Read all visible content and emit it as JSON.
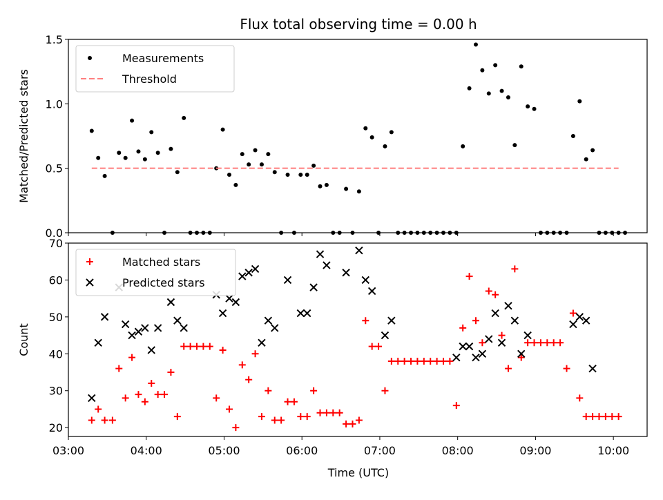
{
  "title": "Flux total observing time = 0.00 h",
  "xlabel": "Time (UTC)",
  "x_ticks": [
    "03:00",
    "04:00",
    "05:00",
    "06:00",
    "07:00",
    "08:00",
    "09:00",
    "10:00"
  ],
  "colors": {
    "measurements": "#000000",
    "threshold": "#ff7f7f",
    "matched": "#ff0000",
    "predicted": "#000000"
  },
  "chart_data": [
    {
      "type": "scatter",
      "ylabel": "Matched/Predicted stars",
      "xlim": [
        "03:00",
        "10:26"
      ],
      "ylim": [
        0,
        1.5
      ],
      "y_ticks": [
        "0.0",
        "0.5",
        "1.0",
        "1.5"
      ],
      "grid": false,
      "legend_position": "top-left",
      "series": [
        {
          "name": "Measurements",
          "marker": "dot",
          "points": [
            [
              "03:18",
              0.79
            ],
            [
              "03:23",
              0.58
            ],
            [
              "03:28",
              0.44
            ],
            [
              "03:34",
              0.0
            ],
            [
              "03:39",
              0.62
            ],
            [
              "03:44",
              0.58
            ],
            [
              "03:49",
              0.87
            ],
            [
              "03:54",
              0.63
            ],
            [
              "03:59",
              0.57
            ],
            [
              "04:04",
              0.78
            ],
            [
              "04:09",
              0.62
            ],
            [
              "04:14",
              0.0
            ],
            [
              "04:19",
              0.65
            ],
            [
              "04:24",
              0.47
            ],
            [
              "04:29",
              0.89
            ],
            [
              "04:34",
              0.0
            ],
            [
              "04:39",
              0.0
            ],
            [
              "04:44",
              0.0
            ],
            [
              "04:49",
              0.0
            ],
            [
              "04:54",
              0.5
            ],
            [
              "04:59",
              0.8
            ],
            [
              "05:04",
              0.45
            ],
            [
              "05:09",
              0.37
            ],
            [
              "05:14",
              0.61
            ],
            [
              "05:19",
              0.53
            ],
            [
              "05:24",
              0.64
            ],
            [
              "05:29",
              0.53
            ],
            [
              "05:34",
              0.61
            ],
            [
              "05:39",
              0.47
            ],
            [
              "05:44",
              0.0
            ],
            [
              "05:49",
              0.45
            ],
            [
              "05:54",
              0.0
            ],
            [
              "05:59",
              0.45
            ],
            [
              "06:04",
              0.45
            ],
            [
              "06:09",
              0.52
            ],
            [
              "06:14",
              0.36
            ],
            [
              "06:19",
              0.37
            ],
            [
              "06:24",
              0.0
            ],
            [
              "06:29",
              0.0
            ],
            [
              "06:34",
              0.34
            ],
            [
              "06:39",
              0.0
            ],
            [
              "06:44",
              0.32
            ],
            [
              "06:49",
              0.81
            ],
            [
              "06:54",
              0.74
            ],
            [
              "06:59",
              0.0
            ],
            [
              "07:04",
              0.67
            ],
            [
              "07:09",
              0.78
            ],
            [
              "07:14",
              0.0
            ],
            [
              "07:19",
              0.0
            ],
            [
              "07:24",
              0.0
            ],
            [
              "07:29",
              0.0
            ],
            [
              "07:34",
              0.0
            ],
            [
              "07:39",
              0.0
            ],
            [
              "07:44",
              0.0
            ],
            [
              "07:49",
              0.0
            ],
            [
              "07:54",
              0.0
            ],
            [
              "07:59",
              0.0
            ],
            [
              "08:04",
              0.67
            ],
            [
              "08:09",
              1.12
            ],
            [
              "08:14",
              1.46
            ],
            [
              "08:19",
              1.26
            ],
            [
              "08:24",
              1.08
            ],
            [
              "08:29",
              1.3
            ],
            [
              "08:34",
              1.1
            ],
            [
              "08:39",
              1.05
            ],
            [
              "08:44",
              0.68
            ],
            [
              "08:49",
              1.29
            ],
            [
              "08:54",
              0.98
            ],
            [
              "08:59",
              0.96
            ],
            [
              "09:04",
              0.0
            ],
            [
              "09:09",
              0.0
            ],
            [
              "09:14",
              0.0
            ],
            [
              "09:19",
              0.0
            ],
            [
              "09:24",
              0.0
            ],
            [
              "09:29",
              0.75
            ],
            [
              "09:34",
              1.02
            ],
            [
              "09:39",
              0.57
            ],
            [
              "09:44",
              0.64
            ],
            [
              "09:49",
              0.0
            ],
            [
              "09:54",
              0.0
            ],
            [
              "09:59",
              0.0
            ],
            [
              "10:04",
              0.0
            ],
            [
              "10:09",
              0.0
            ]
          ]
        },
        {
          "name": "Threshold",
          "marker": "dashed-line",
          "points": [
            [
              "03:18",
              0.5
            ],
            [
              "10:04",
              0.5
            ]
          ]
        }
      ]
    },
    {
      "type": "scatter",
      "ylabel": "Count",
      "xlim": [
        "03:00",
        "10:26"
      ],
      "ylim": [
        17.6,
        70
      ],
      "y_ticks": [
        "20",
        "30",
        "40",
        "50",
        "60",
        "70"
      ],
      "grid": false,
      "legend_position": "top-left",
      "series": [
        {
          "name": "Matched stars",
          "marker": "plus",
          "points": [
            [
              "03:18",
              22
            ],
            [
              "03:23",
              25
            ],
            [
              "03:28",
              22
            ],
            [
              "03:34",
              22
            ],
            [
              "03:39",
              36
            ],
            [
              "03:44",
              28
            ],
            [
              "03:49",
              39
            ],
            [
              "03:54",
              29
            ],
            [
              "03:59",
              27
            ],
            [
              "04:04",
              32
            ],
            [
              "04:09",
              29
            ],
            [
              "04:14",
              29
            ],
            [
              "04:19",
              35
            ],
            [
              "04:24",
              23
            ],
            [
              "04:29",
              42
            ],
            [
              "04:34",
              42
            ],
            [
              "04:39",
              42
            ],
            [
              "04:44",
              42
            ],
            [
              "04:49",
              42
            ],
            [
              "04:54",
              28
            ],
            [
              "04:59",
              41
            ],
            [
              "05:04",
              25
            ],
            [
              "05:09",
              20
            ],
            [
              "05:14",
              37
            ],
            [
              "05:19",
              33
            ],
            [
              "05:24",
              40
            ],
            [
              "05:29",
              23
            ],
            [
              "05:34",
              30
            ],
            [
              "05:39",
              22
            ],
            [
              "05:44",
              22
            ],
            [
              "05:49",
              27
            ],
            [
              "05:54",
              27
            ],
            [
              "05:59",
              23
            ],
            [
              "06:04",
              23
            ],
            [
              "06:09",
              30
            ],
            [
              "06:14",
              24
            ],
            [
              "06:19",
              24
            ],
            [
              "06:24",
              24
            ],
            [
              "06:29",
              24
            ],
            [
              "06:34",
              21
            ],
            [
              "06:39",
              21
            ],
            [
              "06:44",
              22
            ],
            [
              "06:49",
              49
            ],
            [
              "06:54",
              42
            ],
            [
              "06:59",
              42
            ],
            [
              "07:04",
              30
            ],
            [
              "07:09",
              38
            ],
            [
              "07:14",
              38
            ],
            [
              "07:19",
              38
            ],
            [
              "07:24",
              38
            ],
            [
              "07:29",
              38
            ],
            [
              "07:34",
              38
            ],
            [
              "07:39",
              38
            ],
            [
              "07:44",
              38
            ],
            [
              "07:49",
              38
            ],
            [
              "07:54",
              38
            ],
            [
              "07:59",
              26
            ],
            [
              "08:04",
              47
            ],
            [
              "08:09",
              61
            ],
            [
              "08:14",
              49
            ],
            [
              "08:19",
              43
            ],
            [
              "08:24",
              57
            ],
            [
              "08:29",
              56
            ],
            [
              "08:34",
              45
            ],
            [
              "08:39",
              36
            ],
            [
              "08:44",
              63
            ],
            [
              "08:49",
              39
            ],
            [
              "08:54",
              43
            ],
            [
              "08:59",
              43
            ],
            [
              "09:04",
              43
            ],
            [
              "09:09",
              43
            ],
            [
              "09:14",
              43
            ],
            [
              "09:19",
              43
            ],
            [
              "09:24",
              36
            ],
            [
              "09:29",
              51
            ],
            [
              "09:34",
              28
            ],
            [
              "09:39",
              23
            ],
            [
              "09:44",
              23
            ],
            [
              "09:49",
              23
            ],
            [
              "09:54",
              23
            ],
            [
              "09:59",
              23
            ],
            [
              "10:04",
              23
            ]
          ]
        },
        {
          "name": "Predicted stars",
          "marker": "x",
          "points": [
            [
              "03:18",
              28
            ],
            [
              "03:23",
              43
            ],
            [
              "03:28",
              50
            ],
            [
              "03:39",
              58
            ],
            [
              "03:44",
              48
            ],
            [
              "03:49",
              45
            ],
            [
              "03:54",
              46
            ],
            [
              "03:59",
              47
            ],
            [
              "04:04",
              41
            ],
            [
              "04:09",
              47
            ],
            [
              "04:19",
              54
            ],
            [
              "04:24",
              49
            ],
            [
              "04:29",
              47
            ],
            [
              "04:54",
              56
            ],
            [
              "04:59",
              51
            ],
            [
              "05:04",
              55
            ],
            [
              "05:09",
              54
            ],
            [
              "05:14",
              61
            ],
            [
              "05:19",
              62
            ],
            [
              "05:24",
              63
            ],
            [
              "05:29",
              43
            ],
            [
              "05:34",
              49
            ],
            [
              "05:39",
              47
            ],
            [
              "05:49",
              60
            ],
            [
              "05:59",
              51
            ],
            [
              "06:04",
              51
            ],
            [
              "06:09",
              58
            ],
            [
              "06:14",
              67
            ],
            [
              "06:19",
              64
            ],
            [
              "06:34",
              62
            ],
            [
              "06:44",
              68
            ],
            [
              "06:49",
              60
            ],
            [
              "06:54",
              57
            ],
            [
              "07:04",
              45
            ],
            [
              "07:09",
              49
            ],
            [
              "07:59",
              39
            ],
            [
              "08:04",
              42
            ],
            [
              "08:09",
              42
            ],
            [
              "08:14",
              39
            ],
            [
              "08:19",
              40
            ],
            [
              "08:24",
              44
            ],
            [
              "08:29",
              51
            ],
            [
              "08:34",
              43
            ],
            [
              "08:39",
              53
            ],
            [
              "08:44",
              49
            ],
            [
              "08:49",
              40
            ],
            [
              "08:54",
              45
            ],
            [
              "09:29",
              48
            ],
            [
              "09:34",
              50
            ],
            [
              "09:39",
              49
            ],
            [
              "09:44",
              36
            ]
          ]
        }
      ]
    }
  ]
}
